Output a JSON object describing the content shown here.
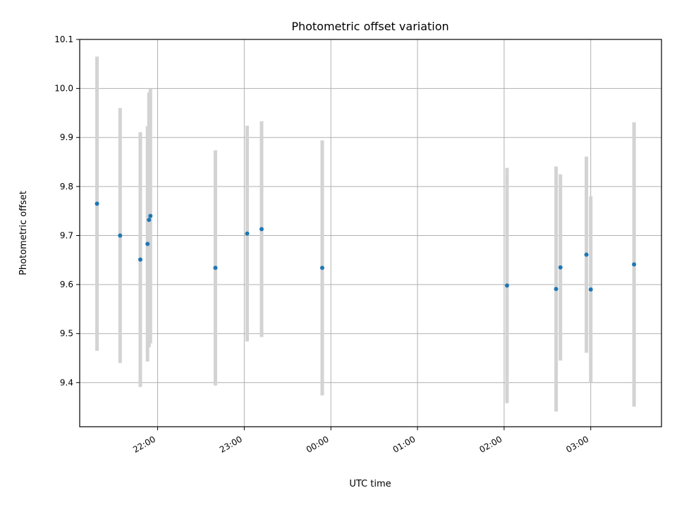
{
  "chart_data": {
    "type": "scatter",
    "title": "Photometric offset variation",
    "xlabel": "UTC time",
    "ylabel": "Photometric offset",
    "x_ticks": [
      "22:00",
      "23:00",
      "00:00",
      "01:00",
      "02:00",
      "03:00"
    ],
    "y_ticks": [
      "9.4",
      "9.5",
      "9.6",
      "9.7",
      "9.8",
      "9.9",
      "10.0",
      "10.1"
    ],
    "xlim": [
      "21:06",
      "03:49"
    ],
    "ylim": [
      9.31,
      10.1
    ],
    "grid": true,
    "colors": {
      "point": "#1f77b4",
      "error_bar": "#d3d3d3"
    },
    "points": [
      {
        "x": "21:18",
        "y": 9.765,
        "err": 0.3
      },
      {
        "x": "21:34",
        "y": 9.7,
        "err": 0.26
      },
      {
        "x": "21:48",
        "y": 9.651,
        "err": 0.26
      },
      {
        "x": "21:53",
        "y": 9.683,
        "err": 0.24
      },
      {
        "x": "21:54",
        "y": 9.732,
        "err": 0.26
      },
      {
        "x": "21:55",
        "y": 9.74,
        "err": 0.26
      },
      {
        "x": "22:40",
        "y": 9.634,
        "err": 0.24
      },
      {
        "x": "23:02",
        "y": 9.704,
        "err": 0.22
      },
      {
        "x": "23:12",
        "y": 9.713,
        "err": 0.22
      },
      {
        "x": "23:54",
        "y": 9.634,
        "err": 0.26
      },
      {
        "x": "02:02",
        "y": 9.598,
        "err": 0.24
      },
      {
        "x": "02:36",
        "y": 9.591,
        "err": 0.25
      },
      {
        "x": "02:39",
        "y": 9.635,
        "err": 0.19
      },
      {
        "x": "02:57",
        "y": 9.661,
        "err": 0.2
      },
      {
        "x": "03:00",
        "y": 9.59,
        "err": 0.19
      },
      {
        "x": "03:30",
        "y": 9.641,
        "err": 0.29
      }
    ]
  }
}
